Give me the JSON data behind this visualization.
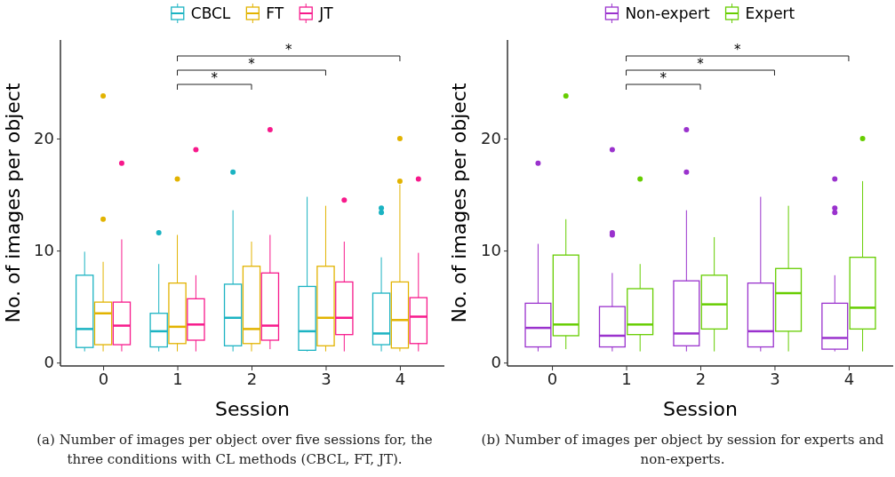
{
  "chart_data": [
    {
      "type": "box",
      "categories": [
        "0",
        "1",
        "2",
        "3",
        "4"
      ],
      "xlabel": "Session",
      "ylabel": "No. of images per object",
      "ylim": [
        -0.3,
        28.8
      ],
      "yticks": [
        0,
        10,
        20
      ],
      "grid": false,
      "legend": "top",
      "annotations": [
        "*",
        "*",
        "*",
        "(a) Number of images per object over five sessions for, the three conditions with CL methods (CBCL, FT, JT)."
      ],
      "series": [
        {
          "name": "CBCL",
          "color": "#1bb3c2",
          "boxes": [
            {
              "low": 1.0,
              "q1": 1.35,
              "median": 3.0,
              "q3": 7.8,
              "high": 9.9
            },
            {
              "low": 1.0,
              "q1": 1.4,
              "median": 2.8,
              "q3": 4.4,
              "high": 8.8,
              "outliers": [
                11.6
              ]
            },
            {
              "low": 1.0,
              "q1": 1.5,
              "median": 4.0,
              "q3": 7.0,
              "high": 13.6,
              "outliers": [
                17.0
              ]
            },
            {
              "low": 1.0,
              "q1": 1.1,
              "median": 2.8,
              "q3": 6.8,
              "high": 14.8
            },
            {
              "low": 1.0,
              "q1": 1.6,
              "median": 2.6,
              "q3": 6.2,
              "high": 9.4,
              "outliers": [
                13.8,
                13.4
              ]
            }
          ]
        },
        {
          "name": "FT",
          "color": "#e2b300",
          "boxes": [
            {
              "low": 1.0,
              "q1": 1.6,
              "median": 4.4,
              "q3": 5.4,
              "high": 9.0,
              "outliers": [
                23.8,
                12.8
              ]
            },
            {
              "low": 1.0,
              "q1": 1.7,
              "median": 3.2,
              "q3": 7.1,
              "high": 11.4,
              "outliers": [
                16.4
              ]
            },
            {
              "low": 1.0,
              "q1": 1.7,
              "median": 3.0,
              "q3": 8.6,
              "high": 10.8
            },
            {
              "low": 1.0,
              "q1": 1.5,
              "median": 4.0,
              "q3": 8.6,
              "high": 14.0
            },
            {
              "low": 1.0,
              "q1": 1.3,
              "median": 3.8,
              "q3": 7.2,
              "high": 15.9,
              "outliers": [
                20.0,
                16.2
              ]
            }
          ]
        },
        {
          "name": "JT",
          "color": "#f7198b",
          "boxes": [
            {
              "low": 1.0,
              "q1": 1.6,
              "median": 3.3,
              "q3": 5.4,
              "high": 11.0,
              "outliers": [
                17.8
              ]
            },
            {
              "low": 1.0,
              "q1": 2.0,
              "median": 3.4,
              "q3": 5.7,
              "high": 7.8,
              "outliers": [
                19.0
              ]
            },
            {
              "low": 1.2,
              "q1": 2.0,
              "median": 3.3,
              "q3": 8.0,
              "high": 11.4,
              "outliers": [
                20.8
              ]
            },
            {
              "low": 1.0,
              "q1": 2.5,
              "median": 4.0,
              "q3": 7.2,
              "high": 10.8,
              "outliers": [
                14.5
              ]
            },
            {
              "low": 1.0,
              "q1": 1.7,
              "median": 4.1,
              "q3": 5.8,
              "high": 9.8,
              "outliers": [
                16.4
              ]
            }
          ]
        }
      ]
    },
    {
      "type": "box",
      "categories": [
        "0",
        "1",
        "2",
        "3",
        "4"
      ],
      "xlabel": "Session",
      "ylabel": "No. of images per object",
      "ylim": [
        -0.3,
        28.8
      ],
      "yticks": [
        0,
        10,
        20
      ],
      "grid": false,
      "legend": "top",
      "annotations": [
        "*",
        "*",
        "*",
        "(b) Number of images per object by session for experts and non-experts."
      ],
      "series": [
        {
          "name": "Non-expert",
          "color": "#9a32cd",
          "boxes": [
            {
              "low": 1.0,
              "q1": 1.4,
              "median": 3.1,
              "q3": 5.3,
              "high": 10.6,
              "outliers": [
                17.8
              ]
            },
            {
              "low": 1.0,
              "q1": 1.4,
              "median": 2.4,
              "q3": 5.0,
              "high": 8.0,
              "outliers": [
                19.0,
                11.6,
                11.4
              ]
            },
            {
              "low": 1.0,
              "q1": 1.5,
              "median": 2.6,
              "q3": 7.3,
              "high": 13.6,
              "outliers": [
                20.8,
                17.0
              ]
            },
            {
              "low": 1.0,
              "q1": 1.4,
              "median": 2.8,
              "q3": 7.1,
              "high": 14.8
            },
            {
              "low": 1.0,
              "q1": 1.2,
              "median": 2.2,
              "q3": 5.3,
              "high": 7.8,
              "outliers": [
                16.4,
                13.8,
                13.4
              ]
            }
          ]
        },
        {
          "name": "Expert",
          "color": "#66cd00",
          "boxes": [
            {
              "low": 1.2,
              "q1": 2.4,
              "median": 3.4,
              "q3": 9.6,
              "high": 12.8,
              "outliers": [
                23.8
              ]
            },
            {
              "low": 1.0,
              "q1": 2.5,
              "median": 3.4,
              "q3": 6.6,
              "high": 8.8,
              "outliers": [
                16.4
              ]
            },
            {
              "low": 1.0,
              "q1": 3.0,
              "median": 5.2,
              "q3": 7.8,
              "high": 11.2
            },
            {
              "low": 1.0,
              "q1": 2.8,
              "median": 6.2,
              "q3": 8.4,
              "high": 14.0
            },
            {
              "low": 1.0,
              "q1": 3.0,
              "median": 4.9,
              "q3": 9.4,
              "high": 16.2,
              "outliers": [
                20.0
              ]
            }
          ]
        }
      ]
    }
  ]
}
